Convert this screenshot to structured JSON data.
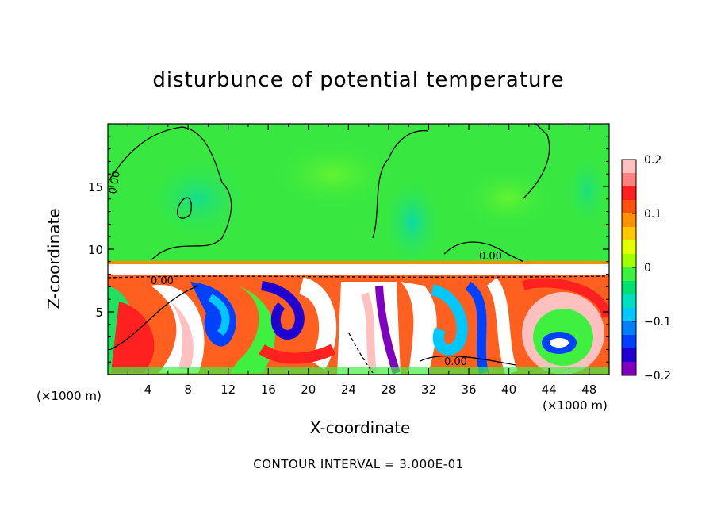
{
  "chart_data": {
    "type": "heatmap",
    "title": "disturbunce of potential temperature",
    "xlabel": "X-coordinate",
    "ylabel": "Z-coordinate",
    "x_unit_label": "(×1000 m)",
    "xlim": [
      0,
      50
    ],
    "ylim": [
      0,
      20
    ],
    "x_ticks": [
      "4",
      "8",
      "12",
      "16",
      "20",
      "24",
      "28",
      "32",
      "36",
      "40",
      "44",
      "48"
    ],
    "y_ticks": [
      "5",
      "10",
      "15"
    ],
    "colorbar": {
      "ticks": [
        "0.2",
        "0.1",
        "0",
        "−0.1",
        "−0.2"
      ],
      "range": [
        -0.2,
        0.2
      ],
      "colors": [
        "#ffc0c0",
        "#ff8080",
        "#ff2020",
        "#ff5010",
        "#ff9000",
        "#ffc800",
        "#e6ff00",
        "#a0ff00",
        "#40f040",
        "#00e070",
        "#00e0c0",
        "#00c8ff",
        "#0080ff",
        "#0040ff",
        "#2000d0",
        "#8000c0"
      ]
    },
    "contour_label": "0.00",
    "contour_interval": "CONTOUR INTERVAL = 3.000E-01"
  }
}
